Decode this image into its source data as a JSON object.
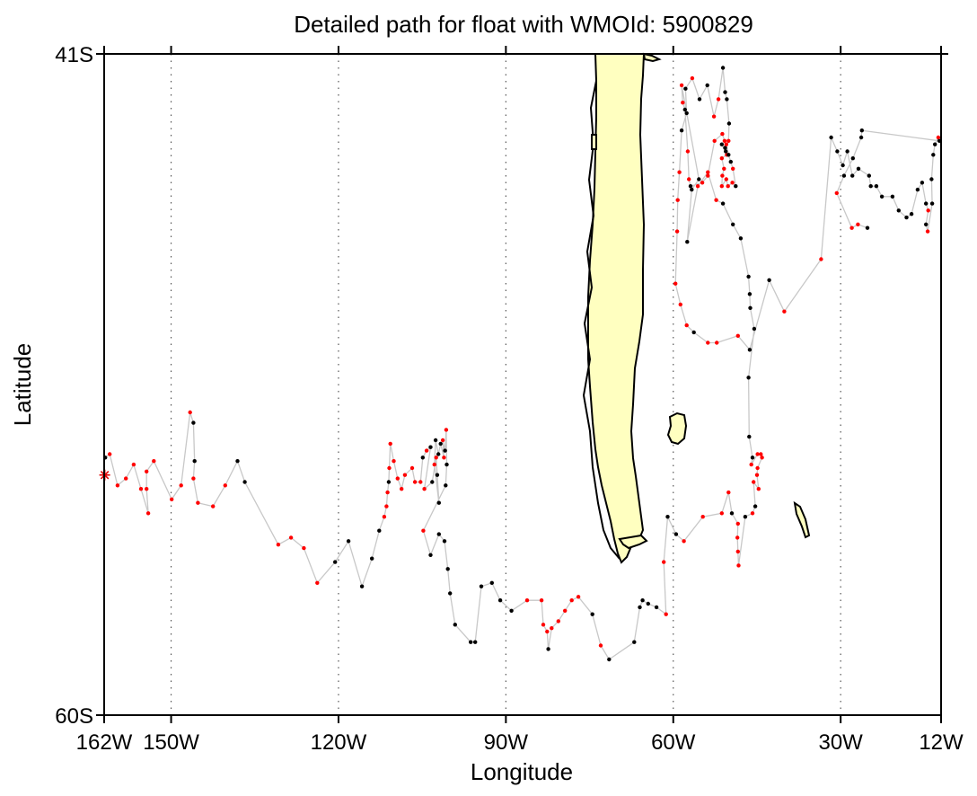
{
  "chart_data": {
    "type": "scatter",
    "title": "Detailed path for float with WMOId: 5900829",
    "xlabel": "Longitude",
    "ylabel": "Latitude",
    "xlim": [
      -162,
      -12
    ],
    "ylim": [
      -60,
      -41
    ],
    "x_ticks": [
      {
        "value": -162,
        "label": "162W"
      },
      {
        "value": -150,
        "label": "150W"
      },
      {
        "value": -120,
        "label": "120W"
      },
      {
        "value": -90,
        "label": "90W"
      },
      {
        "value": -60,
        "label": "60W"
      },
      {
        "value": -30,
        "label": "30W"
      },
      {
        "value": -12,
        "label": "12W"
      }
    ],
    "y_ticks": [
      {
        "value": -41,
        "label": "41S"
      },
      {
        "value": -60,
        "label": "60S"
      }
    ],
    "grid": {
      "vertical_dotted_at": [
        -150,
        -120,
        -90,
        -60,
        -30
      ]
    },
    "colors": {
      "land": "#ffffc0",
      "coast": "#000000",
      "track": "#c8c8c8",
      "point_black": "#000000",
      "point_red": "#ff0000",
      "start_marker": "#e00000"
    },
    "start": {
      "lon": -161.9,
      "lat": -53.1,
      "marker": "asterisk"
    },
    "track": [
      [
        -161.8,
        -52.6,
        0
      ],
      [
        -161.0,
        -52.5,
        1
      ],
      [
        -159.6,
        -53.4,
        1
      ],
      [
        -158.1,
        -53.2,
        1
      ],
      [
        -156.7,
        -52.8,
        1
      ],
      [
        -155.4,
        -53.5,
        1
      ],
      [
        -154.1,
        -54.2,
        1
      ],
      [
        -154.4,
        -53.5,
        1
      ],
      [
        -154.4,
        -53.0,
        1
      ],
      [
        -153.1,
        -52.7,
        1
      ],
      [
        -149.9,
        -53.8,
        1
      ],
      [
        -148.2,
        -53.4,
        1
      ],
      [
        -146.6,
        -51.3,
        1
      ],
      [
        -146.0,
        -51.6,
        0
      ],
      [
        -145.8,
        -52.7,
        0
      ],
      [
        -146.0,
        -53.2,
        1
      ],
      [
        -145.2,
        -53.9,
        1
      ],
      [
        -142.5,
        -54.0,
        1
      ],
      [
        -140.3,
        -53.4,
        1
      ],
      [
        -138.1,
        -52.7,
        0
      ],
      [
        -136.8,
        -53.3,
        0
      ],
      [
        -130.8,
        -55.1,
        1
      ],
      [
        -128.5,
        -54.9,
        1
      ],
      [
        -126.2,
        -55.2,
        1
      ],
      [
        -123.8,
        -56.2,
        1
      ],
      [
        -120.6,
        -55.6,
        0
      ],
      [
        -118.2,
        -55.0,
        0
      ],
      [
        -115.8,
        -56.3,
        0
      ],
      [
        -114.0,
        -55.5,
        0
      ],
      [
        -112.7,
        -54.7,
        0
      ],
      [
        -111.8,
        -54.3,
        1
      ],
      [
        -111.4,
        -54.0,
        1
      ],
      [
        -111.2,
        -53.6,
        1
      ],
      [
        -111.0,
        -53.3,
        0
      ],
      [
        -110.9,
        -52.9,
        1
      ],
      [
        -110.7,
        -52.2,
        1
      ],
      [
        -110.1,
        -52.7,
        1
      ],
      [
        -109.4,
        -53.2,
        1
      ],
      [
        -108.7,
        -53.5,
        1
      ],
      [
        -108.1,
        -53.1,
        1
      ],
      [
        -106.8,
        -52.9,
        1
      ],
      [
        -106.3,
        -53.3,
        1
      ],
      [
        -105.3,
        -53.3,
        1
      ],
      [
        -104.9,
        -52.6,
        0
      ],
      [
        -104.2,
        -52.4,
        1
      ],
      [
        -103.5,
        -52.3,
        0
      ],
      [
        -104.6,
        -53.5,
        1
      ],
      [
        -103.2,
        -53.3,
        0
      ],
      [
        -102.5,
        -52.6,
        1
      ],
      [
        -102.3,
        -53.1,
        0
      ],
      [
        -102.0,
        -53.9,
        0
      ],
      [
        -102.8,
        -52.8,
        1
      ],
      [
        -102.6,
        -52.1,
        0
      ],
      [
        -102.1,
        -52.5,
        0
      ],
      [
        -101.7,
        -52.2,
        0
      ],
      [
        -101.1,
        -52.6,
        1
      ],
      [
        -101.3,
        -52.1,
        1
      ],
      [
        -100.9,
        -52.4,
        0
      ],
      [
        -100.7,
        -51.8,
        1
      ],
      [
        -100.6,
        -52.8,
        0
      ],
      [
        -100.8,
        -53.4,
        0
      ],
      [
        -104.8,
        -54.7,
        1
      ],
      [
        -103.5,
        -55.4,
        0
      ],
      [
        -102.0,
        -54.8,
        0
      ],
      [
        -101.0,
        -55.0,
        0
      ],
      [
        -100.4,
        -55.8,
        0
      ],
      [
        -100.0,
        -56.5,
        0
      ],
      [
        -99.1,
        -57.4,
        0
      ],
      [
        -96.3,
        -57.9,
        0
      ],
      [
        -95.5,
        -57.9,
        0
      ],
      [
        -94.4,
        -56.3,
        0
      ],
      [
        -92.5,
        -56.2,
        0
      ],
      [
        -91.0,
        -56.7,
        0
      ],
      [
        -89.0,
        -57.0,
        0
      ],
      [
        -86.2,
        -56.7,
        1
      ],
      [
        -83.6,
        -56.7,
        1
      ],
      [
        -83.3,
        -57.4,
        1
      ],
      [
        -82.6,
        -57.6,
        1
      ],
      [
        -82.4,
        -58.1,
        0
      ],
      [
        -81.8,
        -57.5,
        1
      ],
      [
        -80.6,
        -57.3,
        1
      ],
      [
        -79.4,
        -57.0,
        1
      ],
      [
        -78.2,
        -56.7,
        1
      ],
      [
        -77.0,
        -56.6,
        1
      ],
      [
        -74.5,
        -57.1,
        0
      ],
      [
        -73.0,
        -58.0,
        1
      ],
      [
        -71.5,
        -58.4,
        0
      ],
      [
        -67.0,
        -57.9,
        0
      ],
      [
        -66.0,
        -56.9,
        0
      ],
      [
        -65.5,
        -56.7,
        0
      ],
      [
        -64.5,
        -56.8,
        0
      ],
      [
        -63.0,
        -56.9,
        0
      ],
      [
        -61.3,
        -57.1,
        1
      ],
      [
        -61.7,
        -55.6,
        1
      ],
      [
        -61.0,
        -54.3,
        0
      ],
      [
        -59.5,
        -54.8,
        0
      ],
      [
        -58.1,
        -55.0,
        1
      ],
      [
        -54.7,
        -54.3,
        1
      ],
      [
        -51.3,
        -54.2,
        1
      ],
      [
        -50.1,
        -53.6,
        1
      ],
      [
        -49.5,
        -54.2,
        0
      ],
      [
        -48.4,
        -54.5,
        1
      ],
      [
        -48.5,
        -54.9,
        1
      ],
      [
        -48.4,
        -55.3,
        1
      ],
      [
        -48.3,
        -55.7,
        1
      ],
      [
        -47.1,
        -54.3,
        0
      ],
      [
        -45.8,
        -54.2,
        1
      ],
      [
        -45.3,
        -54.0,
        0
      ],
      [
        -45.6,
        -53.3,
        1
      ],
      [
        -44.7,
        -53.5,
        1
      ],
      [
        -45.0,
        -53.1,
        1
      ],
      [
        -44.9,
        -52.9,
        1
      ],
      [
        -44.1,
        -52.6,
        1
      ],
      [
        -44.3,
        -52.5,
        1
      ],
      [
        -44.9,
        -52.5,
        1
      ],
      [
        -46.0,
        -52.8,
        1
      ],
      [
        -45.8,
        -52.6,
        0
      ],
      [
        -46.4,
        -52.0,
        0
      ],
      [
        -46.5,
        -50.3,
        0
      ],
      [
        -45.5,
        -48.9,
        0
      ],
      [
        -46.2,
        -48.3,
        0
      ],
      [
        -46.3,
        -47.9,
        0
      ],
      [
        -46.5,
        -47.4,
        0
      ],
      [
        -47.9,
        -46.3,
        0
      ],
      [
        -49.3,
        -45.9,
        0
      ],
      [
        -51.1,
        -45.3,
        0
      ],
      [
        -52.3,
        -45.2,
        1
      ],
      [
        -53.8,
        -44.4,
        1
      ],
      [
        -55.6,
        -44.8,
        1
      ],
      [
        -57.5,
        -46.4,
        0
      ],
      [
        -56.7,
        -44.9,
        0
      ],
      [
        -55.4,
        -44.6,
        0
      ],
      [
        -58.5,
        -41.9,
        1
      ],
      [
        -58.3,
        -42.4,
        1
      ],
      [
        -57.9,
        -42.6,
        0
      ],
      [
        -57.4,
        -43.8,
        1
      ],
      [
        -57.2,
        -44.6,
        1
      ],
      [
        -56.9,
        -44.8,
        0
      ],
      [
        -54.8,
        -44.7,
        1
      ],
      [
        -53.8,
        -44.5,
        1
      ],
      [
        -52.6,
        -43.5,
        1
      ],
      [
        -51.2,
        -43.3,
        1
      ],
      [
        -50.8,
        -43.5,
        1
      ],
      [
        -50.7,
        -43.7,
        0
      ],
      [
        -51.3,
        -43.6,
        0
      ],
      [
        -50.4,
        -43.9,
        1
      ],
      [
        -51.3,
        -44.0,
        1
      ],
      [
        -50.9,
        -44.3,
        1
      ],
      [
        -51.2,
        -44.5,
        1
      ],
      [
        -51.3,
        -44.8,
        1
      ],
      [
        -50.5,
        -44.6,
        1
      ],
      [
        -50.2,
        -44.8,
        1
      ],
      [
        -49.4,
        -44.7,
        1
      ],
      [
        -48.8,
        -44.8,
        0
      ],
      [
        -49.3,
        -44.3,
        1
      ],
      [
        -49.7,
        -44.1,
        0
      ],
      [
        -50.1,
        -43.9,
        0
      ],
      [
        -50.5,
        -43.6,
        1
      ],
      [
        -50.6,
        -43.8,
        0
      ],
      [
        -50.1,
        -43.5,
        1
      ],
      [
        -50.0,
        -43.0,
        0
      ],
      [
        -50.4,
        -42.3,
        0
      ],
      [
        -50.7,
        -42.1,
        0
      ],
      [
        -51.1,
        -41.4,
        0
      ],
      [
        -51.9,
        -42.3,
        1
      ],
      [
        -52.7,
        -42.8,
        1
      ],
      [
        -53.9,
        -41.9,
        0
      ],
      [
        -55.3,
        -42.3,
        0
      ],
      [
        -56.6,
        -41.7,
        1
      ],
      [
        -57.8,
        -42.0,
        0
      ],
      [
        -57.6,
        -42.7,
        0
      ],
      [
        -58.5,
        -43.2,
        0
      ],
      [
        -58.9,
        -44.4,
        1
      ],
      [
        -59.2,
        -45.2,
        1
      ],
      [
        -59.3,
        -46.1,
        1
      ],
      [
        -59.6,
        -47.6,
        1
      ],
      [
        -58.7,
        -48.2,
        1
      ],
      [
        -57.6,
        -48.8,
        1
      ],
      [
        -56.3,
        -49.0,
        0
      ],
      [
        -53.8,
        -49.3,
        1
      ],
      [
        -52.2,
        -49.3,
        1
      ],
      [
        -48.4,
        -49.1,
        1
      ],
      [
        -46.3,
        -49.5,
        0
      ],
      [
        -42.8,
        -47.5,
        0
      ],
      [
        -40.1,
        -48.4,
        1
      ],
      [
        -33.5,
        -46.9,
        1
      ],
      [
        -31.7,
        -43.4,
        0
      ],
      [
        -30.6,
        -43.8,
        0
      ],
      [
        -29.6,
        -44.2,
        0
      ],
      [
        -28.8,
        -43.8,
        0
      ],
      [
        -27.9,
        -44.5,
        0
      ],
      [
        -26.8,
        -44.3,
        0
      ],
      [
        -24.9,
        -44.5,
        0
      ],
      [
        -24.6,
        -44.8,
        0
      ],
      [
        -23.6,
        -44.8,
        0
      ],
      [
        -22.6,
        -45.1,
        0
      ],
      [
        -20.7,
        -45.1,
        0
      ],
      [
        -19.6,
        -45.5,
        0
      ],
      [
        -18.2,
        -45.7,
        0
      ],
      [
        -17.3,
        -45.6,
        0
      ],
      [
        -16.2,
        -44.9,
        0
      ],
      [
        -15.4,
        -44.7,
        0
      ],
      [
        -14.7,
        -45.3,
        0
      ],
      [
        -14.3,
        -45.5,
        1
      ],
      [
        -14.7,
        -45.9,
        0
      ],
      [
        -14.4,
        -46.1,
        1
      ],
      [
        -13.6,
        -45.3,
        0
      ],
      [
        -13.7,
        -44.6,
        0
      ],
      [
        -13.4,
        -43.9,
        0
      ],
      [
        -13.1,
        -43.6,
        0
      ],
      [
        -12.5,
        -43.4,
        1
      ],
      [
        -12.3,
        -43.5,
        0
      ],
      [
        -26.2,
        -43.2,
        0
      ],
      [
        -26.3,
        -43.4,
        0
      ],
      [
        -27.8,
        -44.0,
        0
      ],
      [
        -29.4,
        -44.5,
        0
      ],
      [
        -30.7,
        -45.0,
        1
      ],
      [
        -28.0,
        -46.0,
        1
      ],
      [
        -26.9,
        -45.9,
        1
      ],
      [
        -25.2,
        -46.0,
        0
      ]
    ]
  }
}
